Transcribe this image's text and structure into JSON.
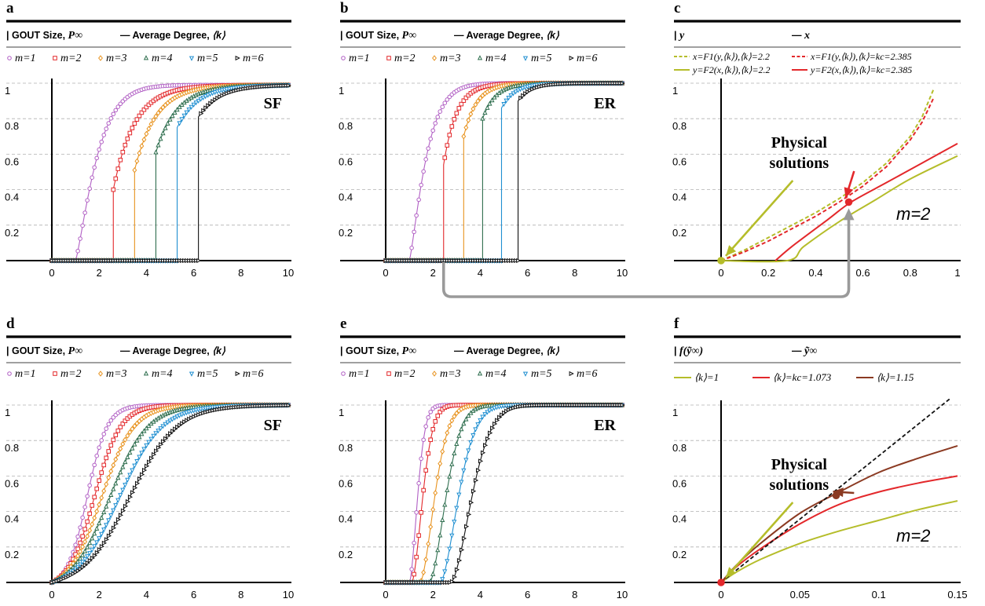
{
  "figure": {
    "axis_color": "#000000",
    "grid_color": "#b0b0b0",
    "arrow_color": "#9a9a9a"
  },
  "chart_data": [
    {
      "id": "a",
      "type": "line",
      "panel_letter": "a",
      "ylabel": "GOUT Size, P∞",
      "xlabel": "Average Degree, ⟨k⟩",
      "network_label": "SF",
      "xlim": [
        0,
        10
      ],
      "ylim": [
        0,
        1
      ],
      "xticks": [
        0,
        2,
        4,
        6,
        8,
        10
      ],
      "yticks": [
        0.2,
        0.4,
        0.6,
        0.8,
        1
      ],
      "grid": true,
      "legend_names": [
        "m=1",
        "m=2",
        "m=3",
        "m=4",
        "m=5",
        "m=6"
      ],
      "series": [
        {
          "name": "m=1",
          "color": "#b15fc4",
          "marker": "circle",
          "kind": "continuous",
          "kc": 1.0,
          "pc": 0.0,
          "pmax": 0.99,
          "tau": 1.0,
          "x": [
            0,
            10
          ]
        },
        {
          "name": "m=2",
          "color": "#e3282b",
          "marker": "square",
          "kind": "jump",
          "kc": 2.6,
          "pc": 0.4,
          "pmax": 0.99,
          "tau": 0.9,
          "x": [
            0,
            10
          ]
        },
        {
          "name": "m=3",
          "color": "#e8931f",
          "marker": "diamond",
          "kind": "jump",
          "kc": 3.5,
          "pc": 0.51,
          "pmax": 0.99,
          "tau": 0.9,
          "x": [
            0,
            10
          ]
        },
        {
          "name": "m=4",
          "color": "#2e6e4e",
          "marker": "triangle-up",
          "kind": "jump",
          "kc": 4.4,
          "pc": 0.61,
          "pmax": 0.99,
          "tau": 0.9,
          "x": [
            0,
            10
          ]
        },
        {
          "name": "m=5",
          "color": "#1f8fd1",
          "marker": "triangle-down",
          "kind": "jump",
          "kc": 5.3,
          "pc": 0.75,
          "pmax": 0.99,
          "tau": 0.9,
          "x": [
            0,
            10
          ]
        },
        {
          "name": "m=6",
          "color": "#111111",
          "marker": "triangle-right",
          "kind": "jump",
          "kc": 6.2,
          "pc": 0.81,
          "pmax": 0.99,
          "tau": 0.9,
          "x": [
            0,
            10
          ]
        }
      ]
    },
    {
      "id": "b",
      "type": "line",
      "panel_letter": "b",
      "ylabel": "GOUT Size, P∞",
      "xlabel": "Average Degree, ⟨k⟩",
      "network_label": "ER",
      "xlim": [
        0,
        10
      ],
      "ylim": [
        0,
        1
      ],
      "xticks": [
        0,
        2,
        4,
        6,
        8,
        10
      ],
      "yticks": [
        0.2,
        0.4,
        0.6,
        0.8,
        1
      ],
      "grid": true,
      "legend_names": [
        "m=1",
        "m=2",
        "m=3",
        "m=4",
        "m=5",
        "m=6"
      ],
      "series": [
        {
          "name": "m=1",
          "color": "#b15fc4",
          "marker": "circle",
          "kind": "continuous",
          "kc": 1.0,
          "pc": 0.0,
          "pmax": 1.0,
          "tau": 0.8,
          "x": [
            0,
            10
          ]
        },
        {
          "name": "m=2",
          "color": "#e3282b",
          "marker": "square",
          "kind": "jump",
          "kc": 2.45,
          "pc": 0.54,
          "pmax": 1.0,
          "tau": 0.55,
          "x": [
            0,
            10
          ]
        },
        {
          "name": "m=3",
          "color": "#e8931f",
          "marker": "diamond",
          "kind": "jump",
          "kc": 3.3,
          "pc": 0.7,
          "pmax": 1.0,
          "tau": 0.55,
          "x": [
            0,
            10
          ]
        },
        {
          "name": "m=4",
          "color": "#2e6e4e",
          "marker": "triangle-up",
          "kind": "jump",
          "kc": 4.1,
          "pc": 0.8,
          "pmax": 1.0,
          "tau": 0.55,
          "x": [
            0,
            10
          ]
        },
        {
          "name": "m=5",
          "color": "#1f8fd1",
          "marker": "triangle-down",
          "kind": "jump",
          "kc": 4.9,
          "pc": 0.86,
          "pmax": 1.0,
          "tau": 0.55,
          "x": [
            0,
            10
          ]
        },
        {
          "name": "m=6",
          "color": "#111111",
          "marker": "triangle-right",
          "kind": "jump",
          "kc": 5.6,
          "pc": 0.9,
          "pmax": 1.0,
          "tau": 0.55,
          "x": [
            0,
            10
          ]
        }
      ]
    },
    {
      "id": "c",
      "type": "line",
      "panel_letter": "c",
      "ylabel": "y",
      "xlabel": "x",
      "xlim": [
        0,
        1
      ],
      "ylim": [
        0,
        1
      ],
      "xticks": [
        0,
        0.2,
        0.4,
        0.6,
        0.8,
        1
      ],
      "yticks": [
        0.2,
        0.4,
        0.6,
        0.8,
        1
      ],
      "grid": true,
      "legend": [
        {
          "label": "x=F1(y,⟨k⟩),⟨k⟩=2.2",
          "color": "#b5bd2a",
          "dash": true
        },
        {
          "label": "x=F1(y,⟨k⟩),⟨k⟩=kc=2.385",
          "color": "#e3282b",
          "dash": true
        },
        {
          "label": "y=F2(x,⟨k⟩),⟨k⟩=2.2",
          "color": "#b5bd2a",
          "dash": false
        },
        {
          "label": "y=F2(x,⟨k⟩),⟨k⟩=kc=2.385",
          "color": "#e3282b",
          "dash": false
        }
      ],
      "curves": [
        {
          "color": "#b5bd2a",
          "dash": true,
          "x": [
            0,
            0.1,
            0.2,
            0.3,
            0.4,
            0.5,
            0.6,
            0.7,
            0.8,
            0.85,
            0.9
          ],
          "y": [
            0,
            0.06,
            0.13,
            0.2,
            0.27,
            0.35,
            0.44,
            0.55,
            0.7,
            0.81,
            0.97
          ]
        },
        {
          "color": "#e3282b",
          "dash": true,
          "x": [
            0,
            0.1,
            0.2,
            0.3,
            0.4,
            0.5,
            0.6,
            0.7,
            0.8,
            0.85,
            0.9
          ],
          "y": [
            0,
            0.05,
            0.11,
            0.18,
            0.25,
            0.33,
            0.42,
            0.53,
            0.68,
            0.78,
            0.92
          ]
        },
        {
          "color": "#b5bd2a",
          "dash": false,
          "x": [
            0,
            0.28,
            0.35,
            0.5,
            0.65,
            0.8,
            1.0
          ],
          "y": [
            0,
            0,
            0.08,
            0.22,
            0.34,
            0.46,
            0.59
          ]
        },
        {
          "color": "#e3282b",
          "dash": false,
          "x": [
            0.23,
            0.3,
            0.45,
            0.55,
            0.7,
            0.85,
            1.0
          ],
          "y": [
            0,
            0.08,
            0.23,
            0.33,
            0.44,
            0.55,
            0.66
          ]
        }
      ],
      "points": [
        {
          "x": 0,
          "y": 0,
          "color": "#b5bd2a"
        },
        {
          "x": 0.54,
          "y": 0.33,
          "color": "#e3282b"
        }
      ],
      "annotation": "Physical\nsolutions",
      "m_label": "m=2"
    },
    {
      "id": "d",
      "type": "line",
      "panel_letter": "d",
      "ylabel": "GOUT Size, P∞",
      "xlabel": "Average Degree, ⟨k⟩",
      "network_label": "SF",
      "xlim": [
        0,
        10
      ],
      "ylim": [
        0,
        1
      ],
      "xticks": [
        0,
        2,
        4,
        6,
        8,
        10
      ],
      "yticks": [
        0.2,
        0.4,
        0.6,
        0.8,
        1
      ],
      "grid": true,
      "legend_names": [
        "m=1",
        "m=2",
        "m=3",
        "m=4",
        "m=5",
        "m=6"
      ],
      "series": [
        {
          "name": "m=1",
          "color": "#b15fc4",
          "marker": "circle",
          "kind": "sigmoid",
          "mid": 1.5,
          "w": 0.42,
          "x": [
            0,
            10
          ]
        },
        {
          "name": "m=2",
          "color": "#e3282b",
          "marker": "square",
          "kind": "sigmoid",
          "mid": 1.8,
          "w": 0.55,
          "x": [
            0,
            10
          ]
        },
        {
          "name": "m=3",
          "color": "#e8931f",
          "marker": "diamond",
          "kind": "sigmoid",
          "mid": 2.1,
          "w": 0.68,
          "x": [
            0,
            10
          ]
        },
        {
          "name": "m=4",
          "color": "#2e6e4e",
          "marker": "triangle-up",
          "kind": "sigmoid",
          "mid": 2.45,
          "w": 0.8,
          "x": [
            0,
            10
          ]
        },
        {
          "name": "m=5",
          "color": "#1f8fd1",
          "marker": "triangle-down",
          "kind": "sigmoid",
          "mid": 2.85,
          "w": 0.9,
          "x": [
            0,
            10
          ]
        },
        {
          "name": "m=6",
          "color": "#111111",
          "marker": "triangle-right",
          "kind": "sigmoid",
          "mid": 3.3,
          "w": 1.0,
          "x": [
            0,
            10
          ]
        }
      ]
    },
    {
      "id": "e",
      "type": "line",
      "panel_letter": "e",
      "ylabel": "GOUT Size, P∞",
      "xlabel": "Average Degree, ⟨k⟩",
      "network_label": "ER",
      "xlim": [
        0,
        10
      ],
      "ylim": [
        0,
        1
      ],
      "xticks": [
        0,
        2,
        4,
        6,
        8,
        10
      ],
      "yticks": [
        0.2,
        0.4,
        0.6,
        0.8,
        1
      ],
      "grid": true,
      "legend_names": [
        "m=1",
        "m=2",
        "m=3",
        "m=4",
        "m=5",
        "m=6"
      ],
      "series": [
        {
          "name": "m=1",
          "color": "#b15fc4",
          "marker": "circle",
          "kind": "shifted",
          "k0": 1.0,
          "tau": 0.45,
          "x": [
            0,
            10
          ]
        },
        {
          "name": "m=2",
          "color": "#e3282b",
          "marker": "square",
          "kind": "shifted",
          "k0": 1.1,
          "tau": 0.6,
          "x": [
            0,
            10
          ]
        },
        {
          "name": "m=3",
          "color": "#e8931f",
          "marker": "diamond",
          "kind": "shifted",
          "k0": 1.45,
          "tau": 0.8,
          "x": [
            0,
            10
          ]
        },
        {
          "name": "m=4",
          "color": "#2e6e4e",
          "marker": "triangle-up",
          "kind": "shifted",
          "k0": 1.85,
          "tau": 0.9,
          "x": [
            0,
            10
          ]
        },
        {
          "name": "m=5",
          "color": "#1f8fd1",
          "marker": "triangle-down",
          "kind": "shifted",
          "k0": 2.3,
          "tau": 1.0,
          "x": [
            0,
            10
          ]
        },
        {
          "name": "m=6",
          "color": "#111111",
          "marker": "triangle-right",
          "kind": "shifted",
          "k0": 2.75,
          "tau": 1.15,
          "x": [
            0,
            10
          ]
        }
      ]
    },
    {
      "id": "f",
      "type": "line",
      "panel_letter": "f",
      "ylabel": "f(ỹ∞)",
      "xlabel": "ỹ∞",
      "xlim": [
        0,
        0.15
      ],
      "ylim": [
        0,
        1
      ],
      "xticks": [
        0,
        0.05,
        0.1,
        0.15
      ],
      "yticks": [
        0.2,
        0.4,
        0.6,
        0.8,
        1
      ],
      "grid": true,
      "legend": [
        {
          "label": "⟨k⟩=1",
          "color": "#b5bd2a"
        },
        {
          "label": "⟨k⟩=kc=1.073",
          "color": "#e3282b"
        },
        {
          "label": "⟨k⟩=1.15",
          "color": "#8b3a22"
        }
      ],
      "curves": [
        {
          "color": "#b5bd2a",
          "dash": false,
          "x": [
            0,
            0.01,
            0.025,
            0.05,
            0.075,
            0.1,
            0.125,
            0.15
          ],
          "y": [
            0,
            0.06,
            0.13,
            0.22,
            0.29,
            0.35,
            0.41,
            0.46
          ]
        },
        {
          "color": "#e3282b",
          "dash": false,
          "x": [
            0,
            0.01,
            0.025,
            0.05,
            0.075,
            0.1,
            0.125,
            0.15
          ],
          "y": [
            0,
            0.09,
            0.19,
            0.33,
            0.44,
            0.51,
            0.56,
            0.6
          ]
        },
        {
          "color": "#8b3a22",
          "dash": false,
          "x": [
            0,
            0.01,
            0.025,
            0.05,
            0.075,
            0.1,
            0.125,
            0.15
          ],
          "y": [
            0,
            0.1,
            0.22,
            0.39,
            0.51,
            0.62,
            0.7,
            0.77
          ]
        },
        {
          "color": "#111111",
          "dash": true,
          "x": [
            0,
            0.15
          ],
          "y": [
            0,
            1.07
          ]
        }
      ],
      "points": [
        {
          "x": 0,
          "y": 0,
          "color": "#e3282b"
        },
        {
          "x": 0.073,
          "y": 0.49,
          "color": "#8b3a22"
        }
      ],
      "annotation": "Physical\nsolutions",
      "m_label": "m=2"
    }
  ]
}
